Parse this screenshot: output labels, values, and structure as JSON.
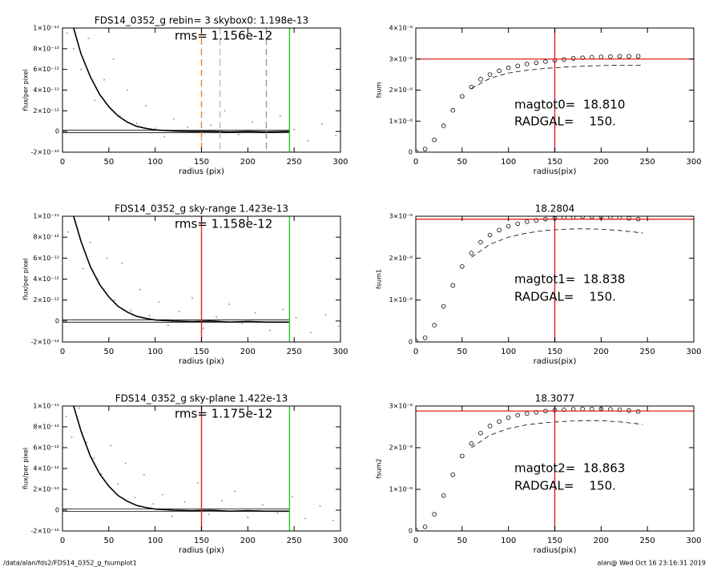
{
  "chart_data": [
    {
      "type": "scatter",
      "title": "FDS14_0352_g rebin= 3    skybox0:  1.198e-13",
      "annotations": [
        "rms= 1.156e-12"
      ],
      "x_label": "radius (pix)",
      "y_label": "flux/per pixel",
      "xlim": [
        0,
        300
      ],
      "xticks": [
        0,
        50,
        100,
        150,
        200,
        250,
        300
      ],
      "ylim": [
        -2e-12,
        1e-11
      ],
      "yticks": [
        {
          "value": -2e-12,
          "label": "-2×10⁻¹²"
        },
        0,
        {
          "value": 2e-12,
          "label": "2×10⁻¹²"
        },
        {
          "value": 4e-12,
          "label": "4×10⁻¹²"
        },
        {
          "value": 6e-12,
          "label": "6×10⁻¹²"
        },
        {
          "value": 8e-12,
          "label": "8×10⁻¹²"
        },
        {
          "value": 1e-11,
          "label": "1×10⁻¹¹"
        }
      ],
      "vlines": [
        {
          "x": 150,
          "color": "#f08020",
          "dash": true
        },
        {
          "x": 170,
          "color": "#bbbbbb",
          "dash": true
        },
        {
          "x": 220,
          "color": "#999999",
          "dash": true
        },
        {
          "x": 245,
          "color": "#22cc22",
          "dash": false
        }
      ],
      "zero_line": {
        "y": 0,
        "x": [
          0,
          245
        ]
      },
      "series": [
        {
          "style": "points",
          "color": "#999999",
          "x": [
            5,
            12,
            20,
            28,
            35,
            45,
            55,
            62,
            70,
            80,
            90,
            100,
            110,
            120,
            135,
            150,
            160,
            175,
            190,
            205,
            220,
            235,
            250,
            265,
            280,
            295
          ],
          "values": [
            9.5e-12,
            8e-12,
            6e-12,
            9e-12,
            3e-12,
            5e-12,
            7e-12,
            1.5e-12,
            4e-12,
            8e-13,
            2.5e-12,
            3e-13,
            -5e-13,
            1.2e-12,
            4e-13,
            -8e-13,
            6e-13,
            2e-12,
            -3e-13,
            9e-13,
            -6e-13,
            1.5e-12,
            2e-13,
            -9e-13,
            7e-13,
            -4e-13
          ]
        },
        {
          "style": "line",
          "color": "#000000",
          "x": [
            12,
            20,
            30,
            40,
            50,
            60,
            70,
            80,
            90,
            100,
            120,
            140,
            160,
            180,
            200,
            220,
            245
          ],
          "values": [
            1e-11,
            7.5e-12,
            5.3e-12,
            3.6e-12,
            2.4e-12,
            1.5e-12,
            9e-13,
            5e-13,
            3e-13,
            1.5e-13,
            5e-14,
            0,
            0,
            -5e-14,
            0,
            -5e-14,
            0
          ]
        }
      ]
    },
    {
      "type": "line",
      "annotations": [
        "magtot0=  18.810",
        "RADGAL=    150."
      ],
      "x_label": "radius(pix)",
      "y_label": "fsum",
      "xlim": [
        0,
        300
      ],
      "xticks": [
        0,
        50,
        100,
        150,
        200,
        250,
        300
      ],
      "ylim": [
        0,
        4e-08
      ],
      "yticks": [
        0,
        {
          "value": 1e-08,
          "label": "1×10⁻⁸"
        },
        {
          "value": 2e-08,
          "label": "2×10⁻⁸"
        },
        {
          "value": 3e-08,
          "label": "3×10⁻⁸"
        },
        {
          "value": 4e-08,
          "label": "4×10⁻⁸"
        }
      ],
      "hline": {
        "y": 3e-08,
        "color": "#dd2222"
      },
      "vlines": [
        {
          "x": 150,
          "color": "#dd2222",
          "dash": false
        }
      ],
      "series": [
        {
          "style": "circles",
          "color": "#000000",
          "x": [
            0,
            10,
            20,
            30,
            40,
            50,
            60,
            70,
            80,
            90,
            100,
            110,
            120,
            130,
            140,
            150,
            160,
            170,
            180,
            190,
            200,
            210,
            220,
            230,
            240
          ],
          "values": [
            2e-10,
            1e-09,
            4e-09,
            8.5e-09,
            1.35e-08,
            1.8e-08,
            2.1e-08,
            2.35e-08,
            2.5e-08,
            2.62e-08,
            2.72e-08,
            2.78e-08,
            2.84e-08,
            2.88e-08,
            2.92e-08,
            2.96e-08,
            2.99e-08,
            3.02e-08,
            3.04e-08,
            3.06e-08,
            3.07e-08,
            3.08e-08,
            3.09e-08,
            3.09e-08,
            3.09e-08
          ]
        },
        {
          "style": "dashed",
          "color": "#000000",
          "x": [
            60,
            80,
            100,
            120,
            140,
            160,
            180,
            200,
            220,
            245
          ],
          "values": [
            2.05e-08,
            2.38e-08,
            2.55e-08,
            2.64e-08,
            2.7e-08,
            2.74e-08,
            2.77e-08,
            2.79e-08,
            2.8e-08,
            2.8e-08
          ]
        }
      ]
    },
    {
      "type": "scatter",
      "title": "FDS14_0352_g sky-range  1.423e-13",
      "annotations": [
        "rms= 1.158e-12"
      ],
      "x_label": "radius (pix)",
      "y_label": "flux/per pixel",
      "xlim": [
        0,
        300
      ],
      "xticks": [
        0,
        50,
        100,
        150,
        200,
        250,
        300
      ],
      "ylim": [
        -2e-12,
        1e-11
      ],
      "yticks": [
        {
          "value": -2e-12,
          "label": "-2×10⁻¹²"
        },
        0,
        {
          "value": 2e-12,
          "label": "2×10⁻¹²"
        },
        {
          "value": 4e-12,
          "label": "4×10⁻¹²"
        },
        {
          "value": 6e-12,
          "label": "6×10⁻¹²"
        },
        {
          "value": 8e-12,
          "label": "8×10⁻¹²"
        },
        {
          "value": 1e-11,
          "label": "1×10⁻¹¹"
        }
      ],
      "vlines": [
        {
          "x": 150,
          "color": "#dd2222",
          "dash": false
        },
        {
          "x": 245,
          "color": "#22cc22",
          "dash": false
        }
      ],
      "zero_line": {
        "y": 0,
        "x": [
          0,
          245
        ]
      },
      "series": [
        {
          "style": "points",
          "color": "#999999",
          "x": [
            6,
            14,
            22,
            30,
            38,
            48,
            56,
            64,
            74,
            84,
            94,
            104,
            114,
            126,
            140,
            152,
            166,
            180,
            194,
            208,
            224,
            238,
            252,
            268,
            284,
            298
          ],
          "values": [
            8.5e-12,
            9.5e-12,
            5e-12,
            7.5e-12,
            4e-12,
            6e-12,
            2e-12,
            5.5e-12,
            1e-12,
            3e-12,
            5e-13,
            1.8e-12,
            -4e-13,
            9e-13,
            2.2e-12,
            -7e-13,
            4e-13,
            1.6e-12,
            -2e-13,
            8e-13,
            -9e-13,
            1.1e-12,
            3e-13,
            -1.1e-12,
            6e-13,
            -5e-13
          ]
        },
        {
          "style": "line",
          "color": "#000000",
          "x": [
            12,
            20,
            30,
            40,
            50,
            60,
            70,
            80,
            90,
            100,
            120,
            140,
            160,
            180,
            200,
            220,
            245
          ],
          "values": [
            1e-11,
            7.6e-12,
            5.2e-12,
            3.5e-12,
            2.3e-12,
            1.4e-12,
            8.5e-13,
            4.5e-13,
            2.5e-13,
            1e-13,
            0,
            -5e-14,
            0,
            -1e-13,
            -5e-14,
            -1e-13,
            -1e-13
          ]
        }
      ]
    },
    {
      "type": "line",
      "title": "18.2804",
      "annotations": [
        "magtot1=  18.838",
        "RADGAL=    150."
      ],
      "x_label": "radius(pix)",
      "y_label": "fsum1",
      "xlim": [
        0,
        300
      ],
      "xticks": [
        0,
        50,
        100,
        150,
        200,
        250,
        300
      ],
      "ylim": [
        0,
        3e-08
      ],
      "yticks": [
        0,
        {
          "value": 1e-08,
          "label": "1×10⁻⁸"
        },
        {
          "value": 2e-08,
          "label": "2×10⁻⁸"
        },
        {
          "value": 3e-08,
          "label": "3×10⁻⁸"
        }
      ],
      "hline": {
        "y": 2.93e-08,
        "color": "#dd2222"
      },
      "vlines": [
        {
          "x": 150,
          "color": "#dd2222",
          "dash": false
        }
      ],
      "series": [
        {
          "style": "circles",
          "color": "#000000",
          "x": [
            0,
            10,
            20,
            30,
            40,
            50,
            60,
            70,
            80,
            90,
            100,
            110,
            120,
            130,
            140,
            150,
            160,
            170,
            180,
            190,
            200,
            210,
            220,
            230,
            240
          ],
          "values": [
            2e-10,
            1e-09,
            4e-09,
            8.5e-09,
            1.35e-08,
            1.8e-08,
            2.12e-08,
            2.38e-08,
            2.55e-08,
            2.67e-08,
            2.76e-08,
            2.82e-08,
            2.87e-08,
            2.9e-08,
            2.93e-08,
            2.95e-08,
            2.97e-08,
            2.98e-08,
            2.99e-08,
            2.99e-08,
            2.99e-08,
            2.98e-08,
            2.97e-08,
            2.95e-08,
            2.93e-08
          ]
        },
        {
          "style": "dashed",
          "color": "#000000",
          "x": [
            60,
            80,
            100,
            120,
            140,
            160,
            180,
            200,
            220,
            245
          ],
          "values": [
            2.02e-08,
            2.33e-08,
            2.5e-08,
            2.6e-08,
            2.66e-08,
            2.69e-08,
            2.7e-08,
            2.69e-08,
            2.66e-08,
            2.6e-08
          ]
        }
      ]
    },
    {
      "type": "scatter",
      "title": "FDS14_0352_g sky-plane  1.422e-13",
      "annotations": [
        "rms= 1.175e-12"
      ],
      "x_label": "radius (pix)",
      "y_label": "flux/per pixel",
      "xlim": [
        0,
        300
      ],
      "xticks": [
        0,
        50,
        100,
        150,
        200,
        250,
        300
      ],
      "ylim": [
        -2e-12,
        1e-11
      ],
      "yticks": [
        {
          "value": -2e-12,
          "label": "-2×10⁻¹²"
        },
        0,
        {
          "value": 2e-12,
          "label": "2×10⁻¹²"
        },
        {
          "value": 4e-12,
          "label": "4×10⁻¹²"
        },
        {
          "value": 6e-12,
          "label": "6×10⁻¹²"
        },
        {
          "value": 8e-12,
          "label": "8×10⁻¹²"
        },
        {
          "value": 1e-11,
          "label": "1×10⁻¹¹"
        }
      ],
      "vlines": [
        {
          "x": 150,
          "color": "#dd2222",
          "dash": false
        },
        {
          "x": 245,
          "color": "#22cc22",
          "dash": false
        }
      ],
      "zero_line": {
        "y": 0,
        "x": [
          0,
          245
        ]
      },
      "series": [
        {
          "style": "points",
          "color": "#999999",
          "x": [
            4,
            10,
            18,
            26,
            34,
            42,
            52,
            60,
            68,
            78,
            88,
            98,
            108,
            118,
            132,
            146,
            158,
            172,
            186,
            200,
            216,
            232,
            248,
            262,
            278,
            292
          ],
          "values": [
            9e-12,
            7e-12,
            9.8e-12,
            6.5e-12,
            5e-12,
            3.5e-12,
            6.2e-12,
            2.5e-12,
            4.5e-12,
            1.2e-12,
            3.4e-12,
            6e-13,
            1.5e-12,
            -6e-13,
            8e-13,
            2.6e-12,
            -4e-13,
            9e-13,
            1.8e-12,
            -7e-13,
            5e-13,
            -3e-13,
            1.3e-12,
            -8e-13,
            4e-13,
            -1e-12
          ]
        },
        {
          "style": "line",
          "color": "#000000",
          "x": [
            12,
            20,
            30,
            40,
            50,
            60,
            70,
            80,
            90,
            100,
            120,
            140,
            160,
            180,
            200,
            220,
            245
          ],
          "values": [
            1e-11,
            7.6e-12,
            5.2e-12,
            3.5e-12,
            2.3e-12,
            1.4e-12,
            8.5e-13,
            4.5e-13,
            2.5e-13,
            1e-13,
            0,
            -5e-14,
            0,
            -1e-13,
            -5e-14,
            -1e-13,
            -1e-13
          ]
        }
      ]
    },
    {
      "type": "line",
      "title": "18.3077",
      "annotations": [
        "magtot2=  18.863",
        "RADGAL=    150."
      ],
      "x_label": "radius(pix)",
      "y_label": "fsum2",
      "xlim": [
        0,
        300
      ],
      "xticks": [
        0,
        50,
        100,
        150,
        200,
        250,
        300
      ],
      "ylim": [
        0,
        3e-08
      ],
      "yticks": [
        0,
        {
          "value": 1e-08,
          "label": "1×10⁻⁸"
        },
        {
          "value": 2e-08,
          "label": "2×10⁻⁸"
        },
        {
          "value": 3e-08,
          "label": "3×10⁻⁸"
        }
      ],
      "hline": {
        "y": 2.88e-08,
        "color": "#dd2222"
      },
      "vlines": [
        {
          "x": 150,
          "color": "#dd2222",
          "dash": false
        }
      ],
      "series": [
        {
          "style": "circles",
          "color": "#000000",
          "x": [
            0,
            10,
            20,
            30,
            40,
            50,
            60,
            70,
            80,
            90,
            100,
            110,
            120,
            130,
            140,
            150,
            160,
            170,
            180,
            190,
            200,
            210,
            220,
            230,
            240
          ],
          "values": [
            2e-10,
            1e-09,
            4e-09,
            8.5e-09,
            1.35e-08,
            1.8e-08,
            2.1e-08,
            2.35e-08,
            2.52e-08,
            2.63e-08,
            2.72e-08,
            2.78e-08,
            2.82e-08,
            2.85e-08,
            2.88e-08,
            2.9e-08,
            2.91e-08,
            2.92e-08,
            2.93e-08,
            2.93e-08,
            2.93e-08,
            2.92e-08,
            2.91e-08,
            2.89e-08,
            2.87e-08
          ]
        },
        {
          "style": "dashed",
          "color": "#000000",
          "x": [
            60,
            80,
            100,
            120,
            140,
            160,
            180,
            200,
            220,
            245
          ],
          "values": [
            2e-08,
            2.3e-08,
            2.46e-08,
            2.55e-08,
            2.6e-08,
            2.63e-08,
            2.65e-08,
            2.65e-08,
            2.62e-08,
            2.56e-08
          ]
        }
      ]
    }
  ],
  "footer": {
    "left": "/data/alan/fds2/FDS14_0352_g_fsumplot1",
    "right": "alan@  Wed Oct 16 23:16:31 2019"
  }
}
